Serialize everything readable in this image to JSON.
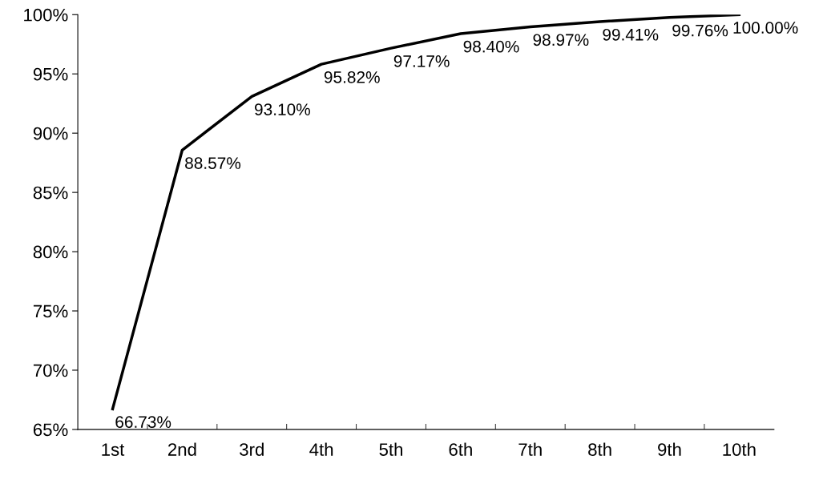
{
  "chart_data": {
    "type": "line",
    "categories": [
      "1st",
      "2nd",
      "3rd",
      "4th",
      "5th",
      "6th",
      "7th",
      "8th",
      "9th",
      "10th"
    ],
    "series": [
      {
        "color": "#000000",
        "values": [
          66.73,
          88.57,
          93.1,
          95.82,
          97.17,
          98.4,
          98.97,
          99.41,
          99.76,
          100.0
        ],
        "value_labels": [
          "66.73%",
          "88.57%",
          "93.10%",
          "95.82%",
          "97.17%",
          "98.40%",
          "98.97%",
          "99.41%",
          "99.76%",
          "100.00%"
        ]
      }
    ],
    "ylim": [
      65,
      100
    ],
    "yticks": [
      {
        "value": 65,
        "label": "65%"
      },
      {
        "value": 70,
        "label": "70%"
      },
      {
        "value": 75,
        "label": "75%"
      },
      {
        "value": 80,
        "label": "80%"
      },
      {
        "value": 85,
        "label": "85%"
      },
      {
        "value": 90,
        "label": "90%"
      },
      {
        "value": 95,
        "label": "95%"
      },
      {
        "value": 100,
        "label": "100%"
      }
    ],
    "grid": false,
    "legend": false,
    "marker": "none",
    "line_style": "solid"
  }
}
